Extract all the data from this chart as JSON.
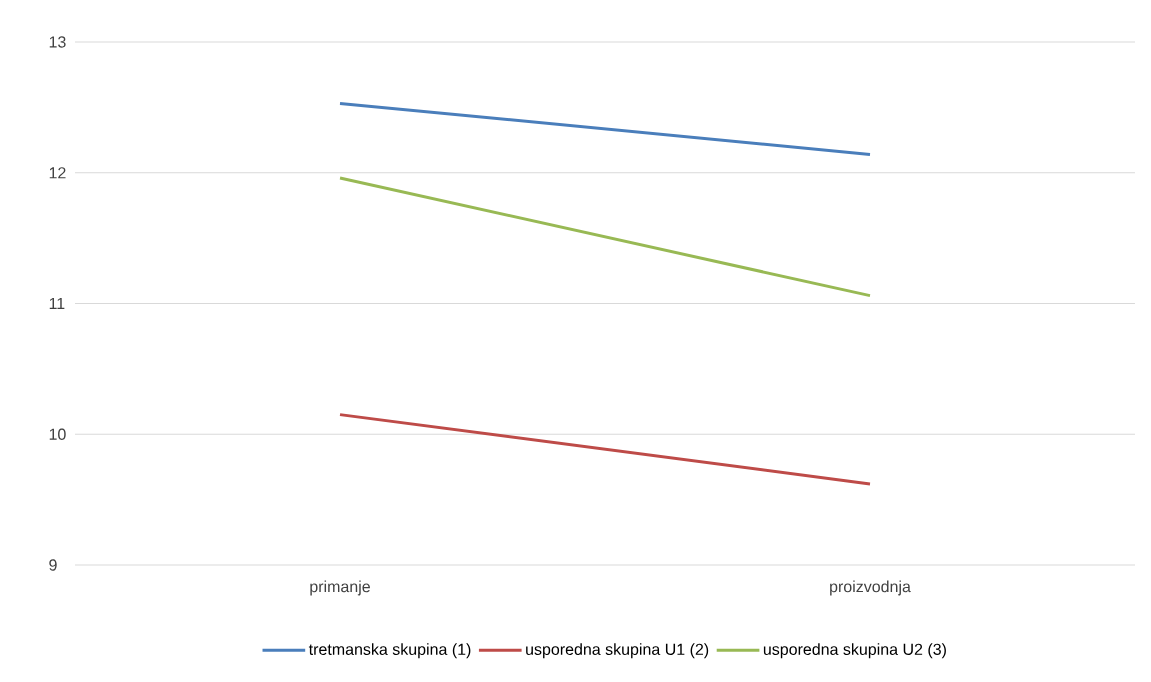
{
  "chart_data": {
    "type": "line",
    "categories": [
      "primanje",
      "proizvodnja"
    ],
    "series": [
      {
        "name": "tretmanska skupina (1)",
        "color": "#4a7ebb",
        "values": [
          12.53,
          12.14
        ]
      },
      {
        "name": "usporedna skupina U1 (2)",
        "color": "#be4b48",
        "values": [
          10.15,
          9.62
        ]
      },
      {
        "name": "usporedna skupina U2 (3)",
        "color": "#98b954",
        "values": [
          11.96,
          11.06
        ]
      }
    ],
    "ylim": [
      9,
      13
    ],
    "yticks": [
      9,
      10,
      11,
      12,
      13
    ],
    "grid": "y",
    "legend": "bottom",
    "marker": "none",
    "line_style": "solid"
  }
}
